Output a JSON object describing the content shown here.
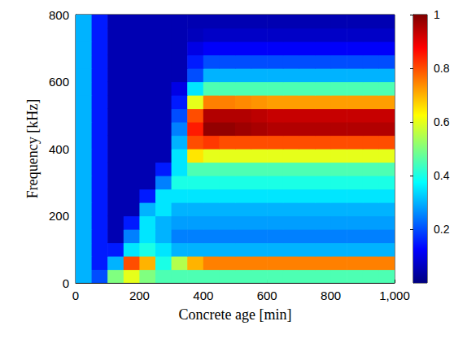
{
  "chart_data": {
    "type": "heatmap",
    "x_label": "Concrete age [min]",
    "y_label": "Frequency [kHz]",
    "x": [
      25,
      75,
      125,
      175,
      225,
      275,
      325,
      375,
      425,
      475,
      525,
      575,
      625,
      675,
      725,
      775,
      825,
      875,
      925,
      975
    ],
    "y": [
      20,
      60,
      100,
      140,
      180,
      220,
      260,
      300,
      340,
      380,
      420,
      460,
      500,
      540,
      580,
      620,
      660,
      700,
      740,
      780
    ],
    "values": [
      [
        0.3,
        0.2,
        0.5,
        0.6,
        0.5,
        0.45,
        0.45,
        0.45,
        0.45,
        0.45,
        0.45,
        0.45,
        0.45,
        0.45,
        0.45,
        0.45,
        0.45,
        0.45,
        0.45,
        0.45
      ],
      [
        0.3,
        0.15,
        0.3,
        0.8,
        0.7,
        0.4,
        0.55,
        0.7,
        0.75,
        0.75,
        0.75,
        0.75,
        0.75,
        0.75,
        0.75,
        0.75,
        0.75,
        0.75,
        0.75,
        0.75
      ],
      [
        0.3,
        0.15,
        0.15,
        0.35,
        0.4,
        0.35,
        0.3,
        0.3,
        0.3,
        0.3,
        0.3,
        0.3,
        0.3,
        0.3,
        0.3,
        0.3,
        0.3,
        0.3,
        0.3,
        0.3
      ],
      [
        0.3,
        0.15,
        0.05,
        0.25,
        0.35,
        0.3,
        0.25,
        0.25,
        0.25,
        0.25,
        0.25,
        0.25,
        0.25,
        0.25,
        0.25,
        0.25,
        0.25,
        0.25,
        0.25,
        0.25
      ],
      [
        0.3,
        0.15,
        0.05,
        0.15,
        0.35,
        0.3,
        0.28,
        0.28,
        0.28,
        0.28,
        0.28,
        0.28,
        0.28,
        0.28,
        0.28,
        0.28,
        0.28,
        0.28,
        0.28,
        0.28
      ],
      [
        0.3,
        0.15,
        0.05,
        0.05,
        0.3,
        0.35,
        0.3,
        0.3,
        0.3,
        0.3,
        0.3,
        0.3,
        0.3,
        0.3,
        0.3,
        0.3,
        0.3,
        0.3,
        0.3,
        0.3
      ],
      [
        0.3,
        0.15,
        0.05,
        0.05,
        0.15,
        0.35,
        0.35,
        0.35,
        0.35,
        0.35,
        0.35,
        0.35,
        0.35,
        0.35,
        0.35,
        0.35,
        0.35,
        0.35,
        0.35,
        0.35
      ],
      [
        0.3,
        0.15,
        0.05,
        0.05,
        0.05,
        0.25,
        0.4,
        0.4,
        0.4,
        0.4,
        0.4,
        0.4,
        0.4,
        0.4,
        0.4,
        0.4,
        0.4,
        0.4,
        0.4,
        0.4
      ],
      [
        0.3,
        0.15,
        0.05,
        0.05,
        0.05,
        0.15,
        0.35,
        0.45,
        0.45,
        0.45,
        0.45,
        0.45,
        0.45,
        0.45,
        0.45,
        0.45,
        0.45,
        0.45,
        0.45,
        0.45
      ],
      [
        0.3,
        0.15,
        0.05,
        0.05,
        0.05,
        0.05,
        0.35,
        0.65,
        0.6,
        0.6,
        0.6,
        0.6,
        0.6,
        0.6,
        0.6,
        0.6,
        0.6,
        0.6,
        0.6,
        0.6
      ],
      [
        0.3,
        0.15,
        0.05,
        0.05,
        0.05,
        0.05,
        0.3,
        0.8,
        0.82,
        0.8,
        0.8,
        0.8,
        0.8,
        0.8,
        0.8,
        0.8,
        0.8,
        0.8,
        0.8,
        0.8
      ],
      [
        0.3,
        0.15,
        0.05,
        0.05,
        0.05,
        0.05,
        0.25,
        0.85,
        0.98,
        0.98,
        0.97,
        0.96,
        0.95,
        0.95,
        0.95,
        0.95,
        0.95,
        0.95,
        0.95,
        0.95
      ],
      [
        0.3,
        0.15,
        0.05,
        0.05,
        0.05,
        0.05,
        0.2,
        0.8,
        0.95,
        0.95,
        0.95,
        0.94,
        0.93,
        0.93,
        0.93,
        0.93,
        0.93,
        0.93,
        0.93,
        0.93
      ],
      [
        0.3,
        0.15,
        0.05,
        0.05,
        0.05,
        0.05,
        0.15,
        0.6,
        0.75,
        0.75,
        0.74,
        0.73,
        0.72,
        0.72,
        0.72,
        0.72,
        0.72,
        0.72,
        0.72,
        0.72
      ],
      [
        0.3,
        0.15,
        0.05,
        0.05,
        0.05,
        0.05,
        0.1,
        0.35,
        0.45,
        0.45,
        0.45,
        0.45,
        0.45,
        0.45,
        0.45,
        0.45,
        0.45,
        0.45,
        0.45,
        0.45
      ],
      [
        0.3,
        0.15,
        0.05,
        0.05,
        0.05,
        0.05,
        0.05,
        0.2,
        0.3,
        0.3,
        0.3,
        0.3,
        0.3,
        0.3,
        0.3,
        0.3,
        0.3,
        0.3,
        0.3,
        0.3
      ],
      [
        0.3,
        0.15,
        0.05,
        0.05,
        0.05,
        0.05,
        0.05,
        0.15,
        0.2,
        0.2,
        0.2,
        0.2,
        0.2,
        0.2,
        0.2,
        0.2,
        0.2,
        0.2,
        0.2,
        0.2
      ],
      [
        0.3,
        0.15,
        0.05,
        0.05,
        0.05,
        0.05,
        0.05,
        0.1,
        0.12,
        0.12,
        0.12,
        0.12,
        0.12,
        0.12,
        0.12,
        0.12,
        0.12,
        0.12,
        0.12,
        0.12
      ],
      [
        0.3,
        0.15,
        0.05,
        0.05,
        0.05,
        0.05,
        0.05,
        0.06,
        0.07,
        0.07,
        0.07,
        0.07,
        0.07,
        0.07,
        0.07,
        0.07,
        0.07,
        0.07,
        0.07,
        0.07
      ],
      [
        0.3,
        0.15,
        0.05,
        0.05,
        0.05,
        0.05,
        0.05,
        0.05,
        0.05,
        0.05,
        0.05,
        0.05,
        0.05,
        0.05,
        0.05,
        0.05,
        0.05,
        0.05,
        0.05,
        0.05
      ]
    ],
    "xlim": [
      0,
      1000
    ],
    "ylim": [
      0,
      800
    ],
    "xticks": [
      0,
      200,
      400,
      600,
      800,
      1000
    ],
    "yticks": [
      0,
      200,
      400,
      600,
      800
    ],
    "colorbar_range": [
      0,
      1
    ],
    "colorbar_ticks": [
      0.2,
      0.4,
      0.6,
      0.8,
      1
    ]
  }
}
